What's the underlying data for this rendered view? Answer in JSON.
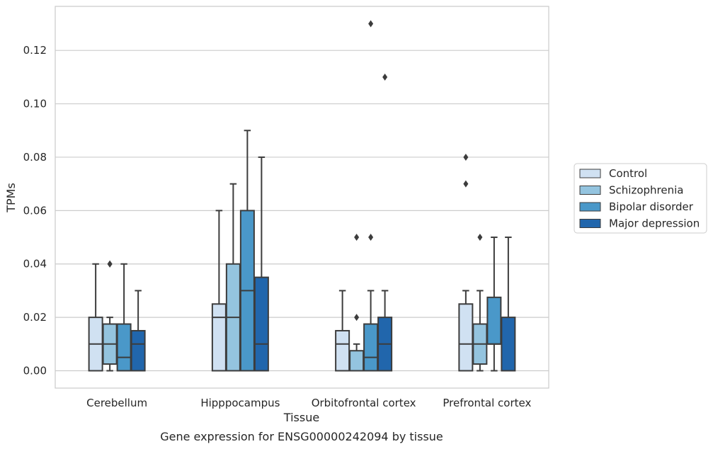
{
  "chart_data": {
    "type": "box",
    "title": "",
    "caption": "Gene expression for ENSG00000242094 by tissue",
    "xlabel": "Tissue",
    "ylabel": "TPMs",
    "ylim": [
      -0.0065,
      0.1365
    ],
    "yticks": [
      0.0,
      0.02,
      0.04,
      0.06,
      0.08,
      0.1,
      0.12
    ],
    "ytick_labels": [
      "0.00",
      "0.02",
      "0.04",
      "0.06",
      "0.08",
      "0.10",
      "0.12"
    ],
    "grid": "horizontal",
    "legend_position": "right",
    "categories": [
      "Cerebellum",
      "Hipppocampus",
      "Orbitofrontal cortex",
      "Prefrontal cortex"
    ],
    "series": [
      {
        "name": "Control",
        "color": "#d0e1f2",
        "boxes": [
          {
            "whislo": 0.0,
            "q1": 0.0,
            "med": 0.01,
            "q3": 0.02,
            "whishi": 0.04,
            "fliers": []
          },
          {
            "whislo": 0.0,
            "q1": 0.0,
            "med": 0.02,
            "q3": 0.025,
            "whishi": 0.06,
            "fliers": []
          },
          {
            "whislo": 0.0,
            "q1": 0.0,
            "med": 0.01,
            "q3": 0.015,
            "whishi": 0.03,
            "fliers": []
          },
          {
            "whislo": 0.0,
            "q1": 0.0,
            "med": 0.01,
            "q3": 0.025,
            "whishi": 0.03,
            "fliers": [
              0.07,
              0.08
            ]
          }
        ]
      },
      {
        "name": "Schizophrenia",
        "color": "#94c4df",
        "boxes": [
          {
            "whislo": 0.0,
            "q1": 0.0025,
            "med": 0.01,
            "q3": 0.0175,
            "whishi": 0.02,
            "fliers": [
              0.04,
              0.04
            ]
          },
          {
            "whislo": 0.0,
            "q1": 0.0,
            "med": 0.02,
            "q3": 0.04,
            "whishi": 0.07,
            "fliers": []
          },
          {
            "whislo": 0.0,
            "q1": 0.0,
            "med": 0.0,
            "q3": 0.0075,
            "whishi": 0.01,
            "fliers": [
              0.02,
              0.05
            ]
          },
          {
            "whislo": 0.0,
            "q1": 0.0025,
            "med": 0.01,
            "q3": 0.0175,
            "whishi": 0.03,
            "fliers": [
              0.05
            ]
          }
        ]
      },
      {
        "name": "Bipolar disorder",
        "color": "#4a98c9",
        "boxes": [
          {
            "whislo": 0.0,
            "q1": 0.0,
            "med": 0.005,
            "q3": 0.0175,
            "whishi": 0.04,
            "fliers": []
          },
          {
            "whislo": 0.0,
            "q1": 0.0,
            "med": 0.03,
            "q3": 0.06,
            "whishi": 0.09,
            "fliers": []
          },
          {
            "whislo": 0.0,
            "q1": 0.0,
            "med": 0.005,
            "q3": 0.0175,
            "whishi": 0.03,
            "fliers": [
              0.05,
              0.13
            ]
          },
          {
            "whislo": 0.0,
            "q1": 0.01,
            "med": 0.01,
            "q3": 0.0275,
            "whishi": 0.05,
            "fliers": []
          }
        ]
      },
      {
        "name": "Major depression",
        "color": "#2166ac",
        "boxes": [
          {
            "whislo": 0.0,
            "q1": 0.0,
            "med": 0.01,
            "q3": 0.015,
            "whishi": 0.03,
            "fliers": []
          },
          {
            "whislo": 0.0,
            "q1": 0.0,
            "med": 0.01,
            "q3": 0.035,
            "whishi": 0.08,
            "fliers": []
          },
          {
            "whislo": 0.0,
            "q1": 0.0,
            "med": 0.01,
            "q3": 0.02,
            "whishi": 0.03,
            "fliers": [
              0.11
            ]
          },
          {
            "whislo": 0.0,
            "q1": 0.0,
            "med": 0.0,
            "q3": 0.02,
            "whishi": 0.05,
            "fliers": []
          }
        ]
      }
    ],
    "colors": {
      "grid": "#cccccc",
      "spine": "#cccccc",
      "line": "#3c3c3c",
      "text": "#262626",
      "background": "#ffffff"
    }
  }
}
